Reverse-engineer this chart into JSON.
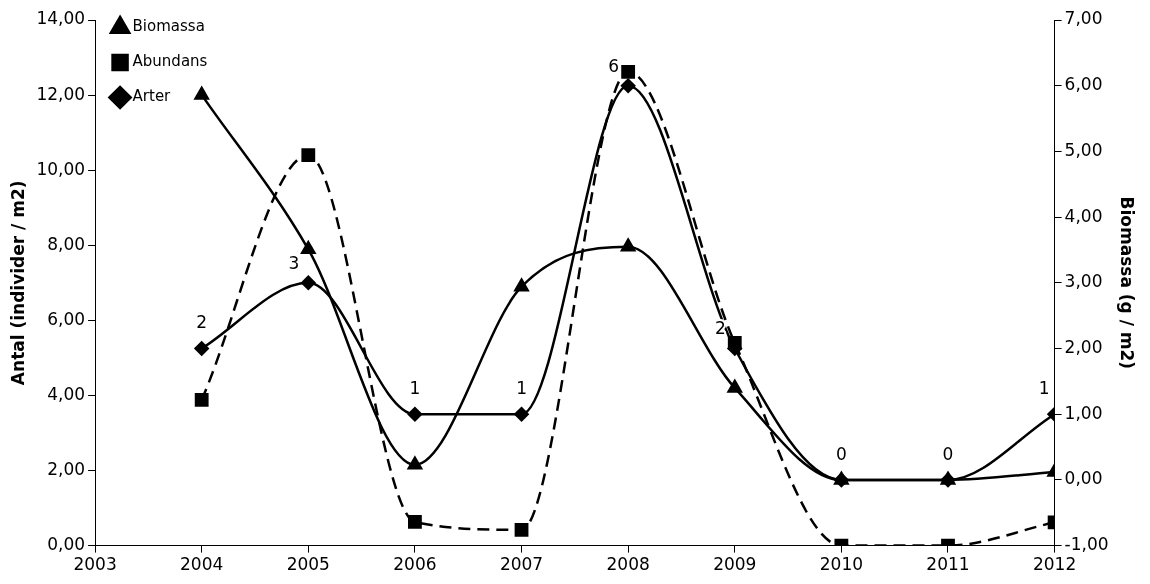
{
  "chart_data": {
    "type": "line",
    "ylabel": "Antal (individer / m2)",
    "y2label": "Biomassa (g / m2)",
    "x": [
      2004,
      2005,
      2006,
      2007,
      2008,
      2009,
      2010,
      2011,
      2012
    ],
    "xlim": [
      2003,
      2012
    ],
    "xticks": [
      2003,
      2004,
      2005,
      2006,
      2007,
      2008,
      2009,
      2010,
      2011,
      2012
    ],
    "ylim": [
      0,
      14
    ],
    "yticks": [
      {
        "value": 0,
        "label": "0,00"
      },
      {
        "value": 2,
        "label": "2,00"
      },
      {
        "value": 4,
        "label": "4,00"
      },
      {
        "value": 6,
        "label": "6,00"
      },
      {
        "value": 8,
        "label": "8,00"
      },
      {
        "value": 10,
        "label": "10,00"
      },
      {
        "value": 12,
        "label": "12,00"
      },
      {
        "value": 14,
        "label": "14,00"
      }
    ],
    "y2lim": [
      -1,
      7
    ],
    "y2ticks": [
      {
        "value": -1,
        "label": "-1,00"
      },
      {
        "value": 0,
        "label": "0,00"
      },
      {
        "value": 1,
        "label": "1,00"
      },
      {
        "value": 2,
        "label": "2,00"
      },
      {
        "value": 3,
        "label": "3,00"
      },
      {
        "value": 4,
        "label": "4,00"
      },
      {
        "value": 5,
        "label": "5,00"
      },
      {
        "value": 6,
        "label": "6,00"
      },
      {
        "value": 7,
        "label": "7,00"
      }
    ],
    "grid": false,
    "legend": "top left",
    "series": [
      {
        "name": "Biomassa",
        "color": "#000000",
        "axis": "y2",
        "marker": "triangle",
        "line_style": "solid",
        "values": [
          5.86,
          3.51,
          0.23,
          2.94,
          3.55,
          1.4,
          0,
          0,
          0.12
        ]
      },
      {
        "name": "Abundans",
        "color": "#000000",
        "marker": "square",
        "line_style": "dashed",
        "values": [
          3.88,
          10.4,
          0.63,
          0.42,
          12.62,
          5.4,
          0,
          0,
          0.62
        ]
      },
      {
        "name": "Arter",
        "color": "#000000",
        "axis": "y2",
        "marker": "diamond",
        "line_style": "solid",
        "values": [
          2,
          3,
          1,
          1,
          6,
          2,
          0,
          0,
          1
        ],
        "value_labels": [
          "2",
          "3",
          "1",
          "1",
          "6",
          "2",
          "0",
          "0",
          "1"
        ]
      }
    ]
  }
}
